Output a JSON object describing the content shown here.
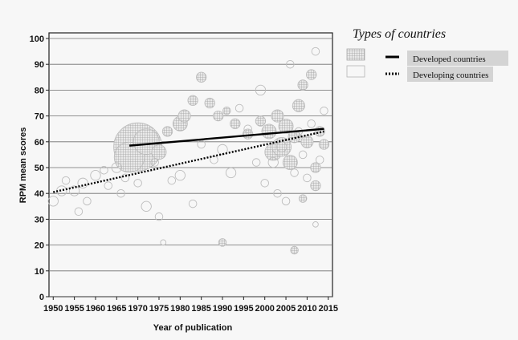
{
  "chart_data": {
    "type": "scatter",
    "title": "",
    "xlabel": "Year of publication",
    "ylabel": "RPM mean scores",
    "xlim": [
      1949,
      2016
    ],
    "ylim": [
      0,
      100
    ],
    "x_ticks": [
      1950,
      1955,
      1960,
      1965,
      1970,
      1975,
      1980,
      1985,
      1990,
      1995,
      2000,
      2005,
      2010,
      2015
    ],
    "y_ticks": [
      0,
      10,
      20,
      30,
      40,
      50,
      60,
      70,
      80,
      90,
      100
    ],
    "grid": "horizontal",
    "legend": {
      "title": "Types of countries",
      "position": "right",
      "entries": [
        {
          "label": "Developed countries",
          "line_style": "solid",
          "marker": "hatched-circle"
        },
        {
          "label": "Developing countries",
          "line_style": "dotted",
          "marker": "open-circle"
        }
      ]
    },
    "series": [
      {
        "name": "Developed countries",
        "marker": "hatched-circle",
        "fit_line": {
          "x": [
            1968,
            2014
          ],
          "y": [
            58.5,
            65
          ]
        },
        "points": [
          {
            "x": 1970,
            "y": 58,
            "s": 20
          },
          {
            "x": 1968,
            "y": 54,
            "s": 12
          },
          {
            "x": 1972,
            "y": 60,
            "s": 10
          },
          {
            "x": 1975,
            "y": 56,
            "s": 5
          },
          {
            "x": 1977,
            "y": 64,
            "s": 3
          },
          {
            "x": 1980,
            "y": 67,
            "s": 5
          },
          {
            "x": 1981,
            "y": 70,
            "s": 4
          },
          {
            "x": 1983,
            "y": 76,
            "s": 3
          },
          {
            "x": 1985,
            "y": 85,
            "s": 3
          },
          {
            "x": 1987,
            "y": 75,
            "s": 3
          },
          {
            "x": 1989,
            "y": 70,
            "s": 3
          },
          {
            "x": 1991,
            "y": 72,
            "s": 2
          },
          {
            "x": 1993,
            "y": 67,
            "s": 3
          },
          {
            "x": 1996,
            "y": 63,
            "s": 3
          },
          {
            "x": 1999,
            "y": 68,
            "s": 3
          },
          {
            "x": 2001,
            "y": 64,
            "s": 5
          },
          {
            "x": 2002,
            "y": 56,
            "s": 6
          },
          {
            "x": 2003,
            "y": 70,
            "s": 4
          },
          {
            "x": 2004,
            "y": 58,
            "s": 7
          },
          {
            "x": 2005,
            "y": 66,
            "s": 5
          },
          {
            "x": 2006,
            "y": 52,
            "s": 5
          },
          {
            "x": 2007,
            "y": 62,
            "s": 4
          },
          {
            "x": 2008,
            "y": 74,
            "s": 4
          },
          {
            "x": 2009,
            "y": 82,
            "s": 3
          },
          {
            "x": 2010,
            "y": 60,
            "s": 4
          },
          {
            "x": 2011,
            "y": 86,
            "s": 3
          },
          {
            "x": 2012,
            "y": 50,
            "s": 3
          },
          {
            "x": 2013,
            "y": 64,
            "s": 3
          },
          {
            "x": 2014,
            "y": 59,
            "s": 3
          },
          {
            "x": 2012,
            "y": 43,
            "s": 3
          },
          {
            "x": 2007,
            "y": 18,
            "s": 2
          },
          {
            "x": 1990,
            "y": 21,
            "s": 2
          },
          {
            "x": 2009,
            "y": 38,
            "s": 2
          }
        ]
      },
      {
        "name": "Developing countries",
        "marker": "open-circle",
        "fit_line": {
          "x": [
            1950,
            2014
          ],
          "y": [
            40.5,
            64
          ]
        },
        "points": [
          {
            "x": 1950,
            "y": 37,
            "s": 3
          },
          {
            "x": 1952,
            "y": 41,
            "s": 3
          },
          {
            "x": 1953,
            "y": 45,
            "s": 2
          },
          {
            "x": 1955,
            "y": 41,
            "s": 3
          },
          {
            "x": 1956,
            "y": 33,
            "s": 2
          },
          {
            "x": 1957,
            "y": 44,
            "s": 3
          },
          {
            "x": 1958,
            "y": 37,
            "s": 2
          },
          {
            "x": 1960,
            "y": 47,
            "s": 3
          },
          {
            "x": 1962,
            "y": 49,
            "s": 2
          },
          {
            "x": 1963,
            "y": 43,
            "s": 2
          },
          {
            "x": 1965,
            "y": 50,
            "s": 3
          },
          {
            "x": 1966,
            "y": 40,
            "s": 2
          },
          {
            "x": 1967,
            "y": 46,
            "s": 2
          },
          {
            "x": 1970,
            "y": 44,
            "s": 2
          },
          {
            "x": 1972,
            "y": 35,
            "s": 3
          },
          {
            "x": 1974,
            "y": 52,
            "s": 2
          },
          {
            "x": 1975,
            "y": 31,
            "s": 2
          },
          {
            "x": 1978,
            "y": 45,
            "s": 2
          },
          {
            "x": 1980,
            "y": 47,
            "s": 3
          },
          {
            "x": 1983,
            "y": 36,
            "s": 2
          },
          {
            "x": 1985,
            "y": 59,
            "s": 2
          },
          {
            "x": 1988,
            "y": 53,
            "s": 2
          },
          {
            "x": 1990,
            "y": 57,
            "s": 3
          },
          {
            "x": 1992,
            "y": 48,
            "s": 3
          },
          {
            "x": 1994,
            "y": 73,
            "s": 2
          },
          {
            "x": 1996,
            "y": 65,
            "s": 2
          },
          {
            "x": 1998,
            "y": 52,
            "s": 2
          },
          {
            "x": 1999,
            "y": 80,
            "s": 3
          },
          {
            "x": 2000,
            "y": 44,
            "s": 2
          },
          {
            "x": 2002,
            "y": 52,
            "s": 3
          },
          {
            "x": 2003,
            "y": 40,
            "s": 2
          },
          {
            "x": 2004,
            "y": 58,
            "s": 3
          },
          {
            "x": 2005,
            "y": 37,
            "s": 2
          },
          {
            "x": 2006,
            "y": 90,
            "s": 2
          },
          {
            "x": 2007,
            "y": 48,
            "s": 2
          },
          {
            "x": 2008,
            "y": 64,
            "s": 2
          },
          {
            "x": 2009,
            "y": 55,
            "s": 2
          },
          {
            "x": 2010,
            "y": 46,
            "s": 2
          },
          {
            "x": 2011,
            "y": 67,
            "s": 2
          },
          {
            "x": 2012,
            "y": 95,
            "s": 2
          },
          {
            "x": 2013,
            "y": 53,
            "s": 2
          },
          {
            "x": 2014,
            "y": 72,
            "s": 2
          },
          {
            "x": 1976,
            "y": 21,
            "s": 1
          },
          {
            "x": 2012,
            "y": 28,
            "s": 1
          }
        ]
      }
    ]
  },
  "colors": {
    "background": "#f7f7f7",
    "plot_bg": "#f7f7f7",
    "grid": "#6f6f6f",
    "marker": "#bdbdbd",
    "legend_label_bg": "#d4d4d4",
    "text": "#111111"
  }
}
